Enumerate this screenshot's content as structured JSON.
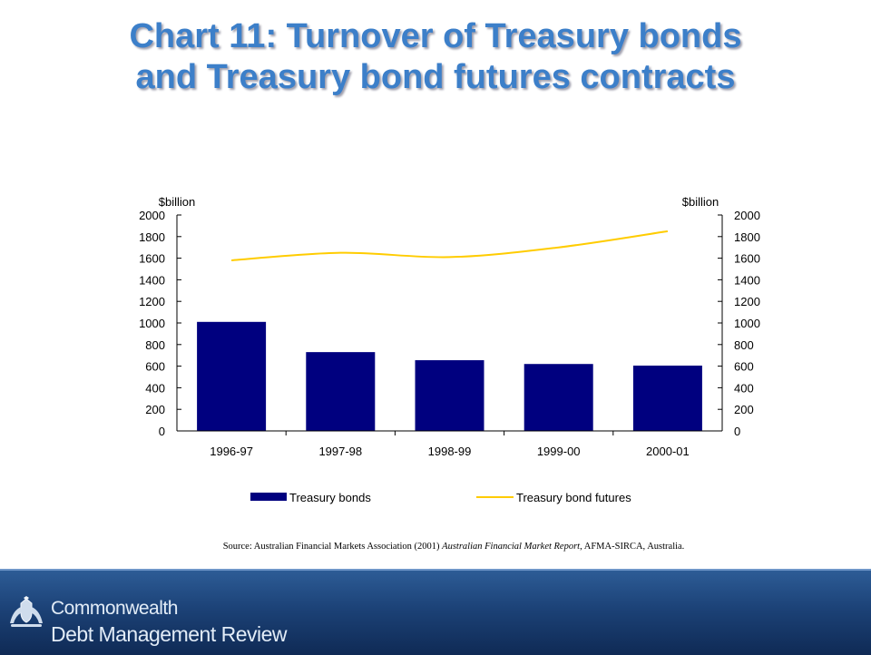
{
  "slide": {
    "title_line1": "Chart 11:  Turnover of Treasury bonds",
    "title_line2": "and Treasury bond futures contracts"
  },
  "chart_data": {
    "type": "bar",
    "categories": [
      "1996-97",
      "1997-98",
      "1998-99",
      "1999-00",
      "2000-01"
    ],
    "series": [
      {
        "name": "Treasury bonds",
        "type": "bar",
        "color": "#00007f",
        "values": [
          1010,
          730,
          655,
          620,
          605
        ]
      },
      {
        "name": "Treasury bond futures",
        "type": "line",
        "color": "#ffcc00",
        "values": [
          1580,
          1650,
          1610,
          1700,
          1850
        ]
      }
    ],
    "y_left": {
      "unit_label": "$billion",
      "min": 0,
      "max": 2000,
      "ticks": [
        0,
        200,
        400,
        600,
        800,
        1000,
        1200,
        1400,
        1600,
        1800,
        2000
      ]
    },
    "y_right": {
      "unit_label": "$billion",
      "min": 0,
      "max": 2000,
      "ticks": [
        0,
        200,
        400,
        600,
        800,
        1000,
        1200,
        1400,
        1600,
        1800,
        2000
      ]
    },
    "grid": false,
    "legend_position": "bottom"
  },
  "source": {
    "prefix": "Source: Australian Financial Markets Association (2001) ",
    "publication": "Australian Financial Market Report",
    "suffix": ", AFMA-SIRCA,  Australia."
  },
  "footer": {
    "crest_icon": "coat-of-arms-icon",
    "line1": "Commonwealth",
    "line2": "Debt Management Review"
  }
}
